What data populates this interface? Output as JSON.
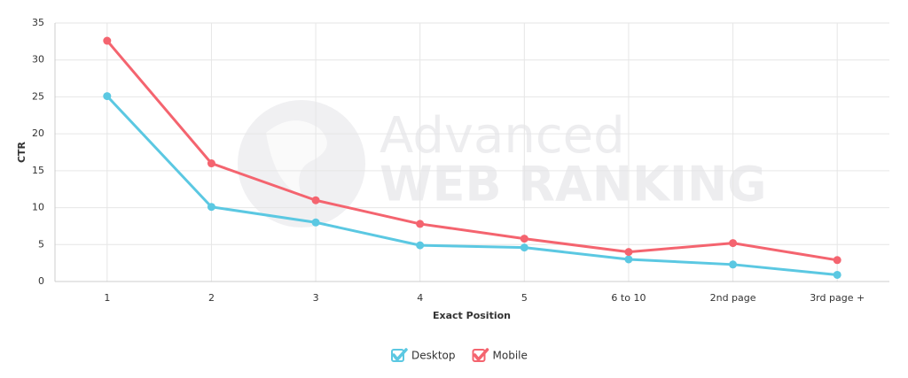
{
  "chart_data": {
    "type": "line",
    "watermark": [
      "Advanced",
      "WEB RANKING"
    ],
    "x_label": "Exact Position",
    "y_label": "CTR",
    "categories": [
      "1",
      "2",
      "3",
      "4",
      "5",
      "6 to 10",
      "2nd page",
      "3rd page +"
    ],
    "series": [
      {
        "name": "Desktop",
        "color": "#5bc8e2",
        "values": [
          25.1,
          10.1,
          8.0,
          4.9,
          4.6,
          3.0,
          2.3,
          0.9
        ]
      },
      {
        "name": "Mobile",
        "color": "#f4646f",
        "values": [
          32.6,
          16.0,
          11.0,
          7.8,
          5.8,
          4.0,
          5.2,
          2.9
        ]
      }
    ],
    "ylim": [
      0,
      35
    ],
    "yticks": [
      0,
      5,
      10,
      15,
      20,
      25,
      30,
      35
    ],
    "grid": true
  }
}
